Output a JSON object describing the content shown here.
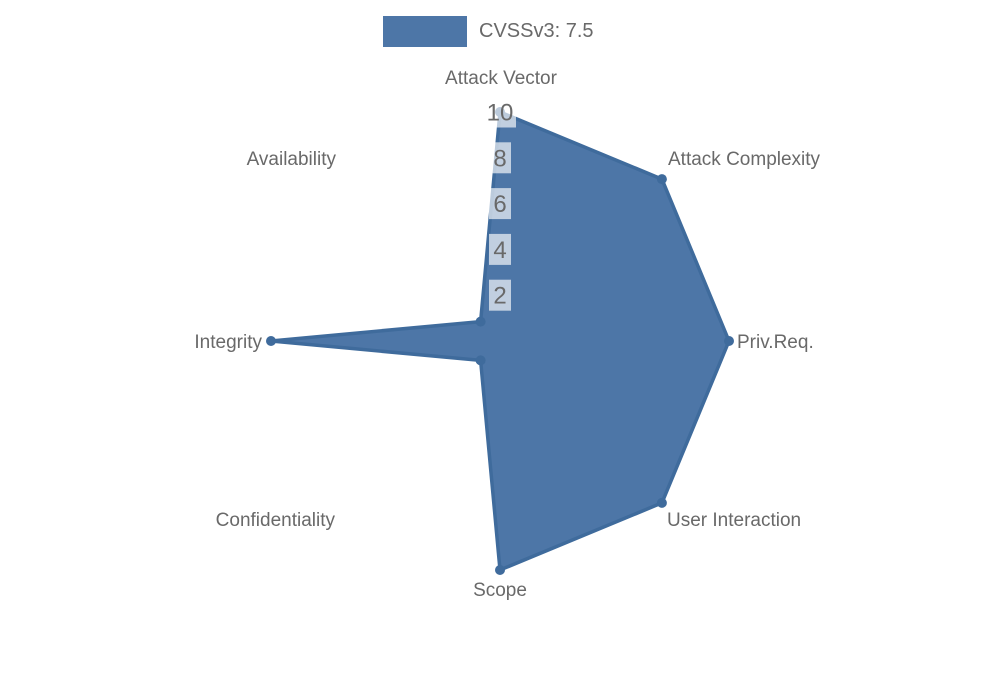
{
  "legend": {
    "items": [
      {
        "label": "CVSSv3: 7.5",
        "color": "#4d76a7"
      }
    ]
  },
  "chart_data": {
    "type": "radar",
    "axes": [
      "Attack Vector",
      "Attack Complexity",
      "Priv.Req.",
      "User Interaction",
      "Scope",
      "Confidentiality",
      "Integrity",
      "Availability"
    ],
    "series": [
      {
        "name": "CVSSv3: 7.5",
        "values": [
          10,
          10,
          10,
          10,
          10,
          0,
          10,
          0
        ],
        "fill_color": "#4d76a7",
        "line_color": "#3f6b9c",
        "point_color": "#3f6b9c"
      }
    ],
    "rlim": [
      0,
      10
    ],
    "tick_values": [
      2,
      4,
      6,
      8,
      10
    ],
    "tick_axis": "vertical-top",
    "legend_position": "top-center",
    "grid": "polygon-web, 5 levels, visible only over filled area",
    "colors": {
      "grid_line": "rgba(0,0,0,0.16)",
      "tick_backdrop": "rgba(255,255,255,0.65)",
      "text": "#696969",
      "background": "#ffffff"
    },
    "render": {
      "near_zero_radius_value": 1.2
    }
  }
}
